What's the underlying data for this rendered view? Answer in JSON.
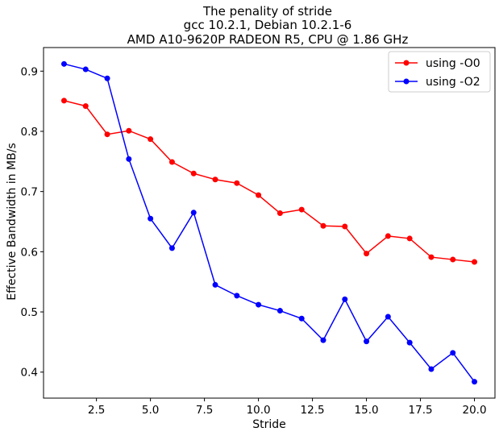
{
  "chart_data": {
    "type": "line",
    "title": [
      "The penality of stride",
      "gcc 10.2.1, Debian 10.2.1-6",
      "AMD A10-9620P RADEON R5, CPU @ 1.86 GHz"
    ],
    "xlabel": "Stride",
    "ylabel": "Effective Bandwidth in MB/s",
    "xlim": [
      0.05,
      20.95
    ],
    "ylim": [
      0.3568,
      0.9392
    ],
    "xticks": [
      2.5,
      5.0,
      7.5,
      10.0,
      12.5,
      15.0,
      17.5,
      20.0
    ],
    "xtick_labels": [
      "2.5",
      "5.0",
      "7.5",
      "10.0",
      "12.5",
      "15.0",
      "17.5",
      "20.0"
    ],
    "yticks": [
      0.4,
      0.5,
      0.6,
      0.7,
      0.8,
      0.9
    ],
    "ytick_labels": [
      "0.4",
      "0.5",
      "0.6",
      "0.7",
      "0.8",
      "0.9"
    ],
    "grid": false,
    "legend_position": "top-right",
    "x": [
      1,
      2,
      3,
      4,
      5,
      6,
      7,
      8,
      9,
      10,
      11,
      12,
      13,
      14,
      15,
      16,
      17,
      18,
      19,
      20
    ],
    "series": [
      {
        "name": "using -O0",
        "color": "#ff0000",
        "values": [
          0.851,
          0.842,
          0.795,
          0.801,
          0.787,
          0.749,
          0.73,
          0.72,
          0.714,
          0.694,
          0.664,
          0.67,
          0.643,
          0.642,
          0.597,
          0.626,
          0.622,
          0.591,
          0.587,
          0.583
        ]
      },
      {
        "name": "using -O2",
        "color": "#0000ff",
        "values": [
          0.912,
          0.903,
          0.888,
          0.754,
          0.655,
          0.606,
          0.665,
          0.545,
          0.527,
          0.512,
          0.502,
          0.489,
          0.453,
          0.521,
          0.451,
          0.492,
          0.449,
          0.405,
          0.432,
          0.384
        ]
      }
    ]
  }
}
